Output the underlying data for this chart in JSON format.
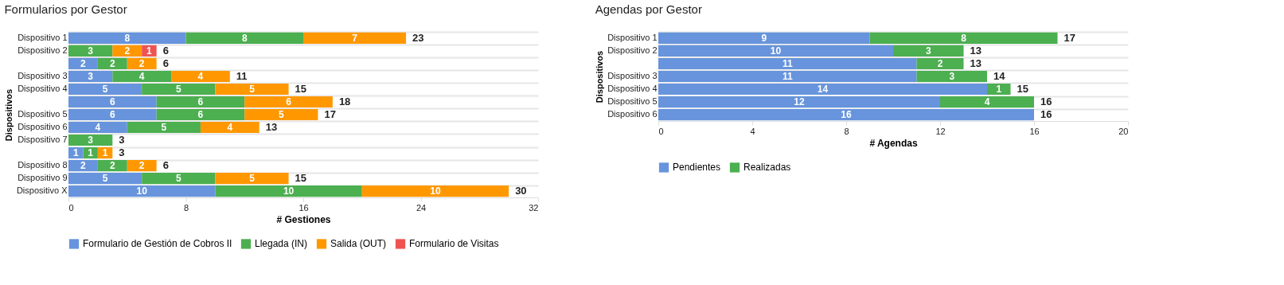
{
  "chart_data": [
    {
      "type": "bar",
      "orientation": "horizontal",
      "stacked": true,
      "title": "Formularios por Gestor",
      "xlabel": "# Gestiones",
      "ylabel": "Dispositivos",
      "categories": [
        "Dispositivo 1",
        "Dispositivo 2",
        null,
        "Dispositivo 3",
        "Dispositivo 4",
        null,
        "Dispositivo 5",
        "Dispositivo 6",
        "Dispositivo 7",
        null,
        "Dispositivo 8",
        "Dispositivo 9",
        "Dispositivo X"
      ],
      "series": [
        {
          "name": "Formulario de Gestión de Cobros II",
          "color": "#6794dc",
          "values": [
            8,
            null,
            2,
            3,
            5,
            6,
            6,
            4,
            null,
            1,
            2,
            5,
            10
          ]
        },
        {
          "name": "Llegada (IN)",
          "color": "#4caf50",
          "values": [
            8,
            3,
            2,
            4,
            5,
            6,
            6,
            5,
            3,
            1,
            2,
            5,
            10
          ]
        },
        {
          "name": "Salida (OUT)",
          "color": "#ff9800",
          "values": [
            7,
            2,
            2,
            4,
            5,
            6,
            5,
            4,
            null,
            1,
            2,
            5,
            10
          ]
        },
        {
          "name": "Formulario de Visitas",
          "color": "#ef5350",
          "values": [
            null,
            1,
            null,
            null,
            null,
            null,
            null,
            null,
            null,
            null,
            null,
            null,
            null
          ]
        }
      ],
      "totals": [
        "23",
        "6",
        "6",
        "11",
        "15",
        "18",
        "17",
        "13",
        "3",
        "3",
        "6",
        "15",
        "30"
      ],
      "xlim": [
        0,
        32
      ],
      "xticks": [
        0,
        8,
        16,
        24,
        32
      ],
      "grid": "y",
      "legend": "bottom",
      "data_labels": true
    },
    {
      "type": "bar",
      "orientation": "horizontal",
      "stacked": true,
      "title": "Agendas por Gestor",
      "xlabel": "# Agendas",
      "ylabel": "Dispositivos",
      "categories": [
        "Dispositivo 1",
        "Dispositivo 2",
        null,
        "Dispositivo 3",
        "Dispositivo 4",
        "Dispositivo 5",
        "Dispositivo 6"
      ],
      "series": [
        {
          "name": "Pendientes",
          "color": "#6794dc",
          "values": [
            9,
            10,
            11,
            11,
            14,
            12,
            16
          ],
          "value_labels": [
            "9",
            "10",
            "11",
            "11",
            "14",
            "12",
            "16"
          ]
        },
        {
          "name": "Realizadas",
          "color": "#4caf50",
          "values": [
            8,
            3,
            2,
            3,
            1,
            4,
            null
          ],
          "value_labels": [
            "8",
            "3",
            "2",
            "3",
            "1",
            "4",
            null
          ]
        }
      ],
      "totals": [
        "17",
        "13",
        "13",
        "14",
        "15",
        "16",
        "16"
      ],
      "xlim": [
        0,
        20
      ],
      "xticks": [
        0,
        4,
        8,
        12,
        16,
        20
      ],
      "grid": "y",
      "legend": "bottom"
    }
  ]
}
